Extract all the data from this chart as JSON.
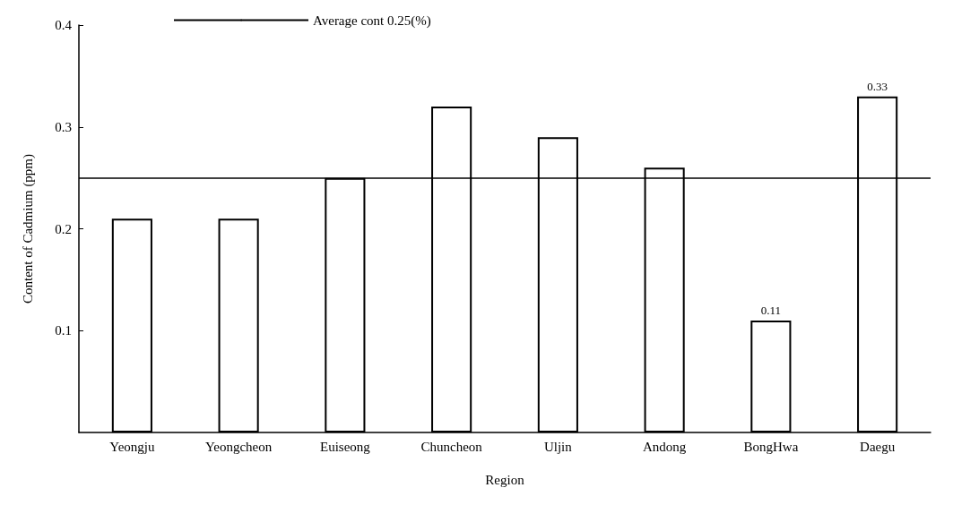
{
  "chart_data": {
    "type": "bar",
    "xlabel": "Region",
    "ylabel": "Content of Cadmium (ppm)",
    "categories": [
      "Yeongju",
      "Yeongcheon",
      "Euiseong",
      "Chuncheon",
      "Uljin",
      "Andong",
      "BongHwa",
      "Daegu"
    ],
    "values": [
      0.21,
      0.21,
      0.25,
      0.32,
      0.29,
      0.26,
      0.11,
      0.33
    ],
    "value_labels": [
      null,
      null,
      null,
      null,
      null,
      null,
      "0.11",
      "0.33"
    ],
    "color": "#ffffff",
    "ylim": [
      0,
      0.4
    ],
    "yticks": [
      0.1,
      0.2,
      0.3,
      0.4
    ],
    "ref_lines": [
      {
        "axis": "y",
        "value": 0.25,
        "label": "Average cont 0.25(%)",
        "color": "#000000"
      }
    ],
    "legend": "top",
    "grid": false
  }
}
